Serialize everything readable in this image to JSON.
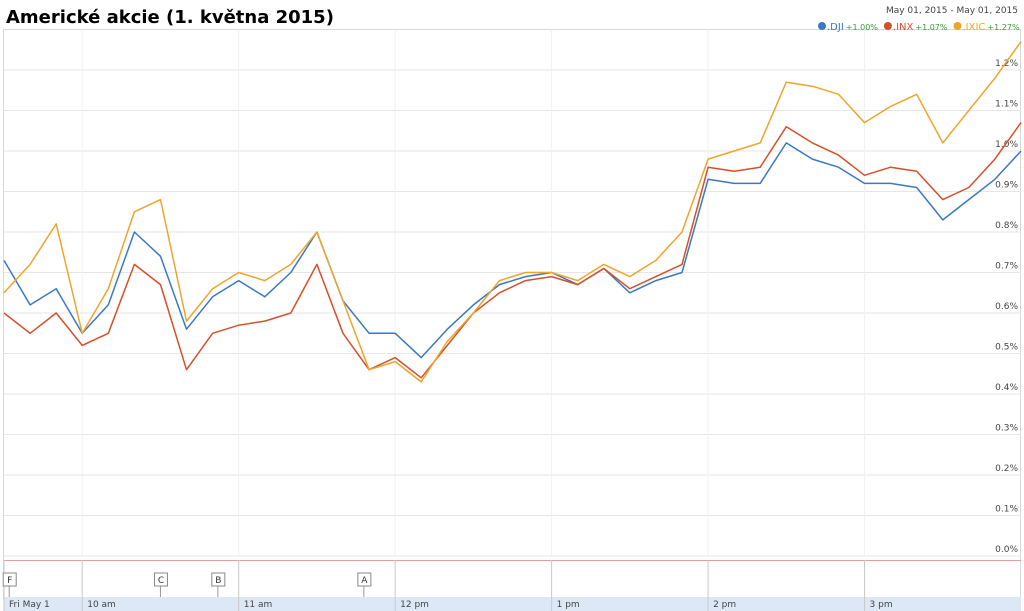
{
  "chart_data": {
    "type": "line",
    "title": "Americké akcie (1. května 2015)",
    "date_range": "May 01, 2015 - May 01, 2015",
    "x": [
      570,
      580,
      590,
      600,
      610,
      620,
      630,
      640,
      650,
      660,
      670,
      680,
      690,
      700,
      710,
      720,
      730,
      740,
      750,
      760,
      770,
      780,
      790,
      800,
      810,
      820,
      830,
      840,
      850,
      860,
      870,
      880,
      890,
      900,
      910,
      920,
      930,
      940,
      950,
      960
    ],
    "series": [
      {
        "name": ".DJI",
        "change": "+1.00%",
        "color": "#3a78c0",
        "values": [
          0.73,
          0.62,
          0.66,
          0.55,
          0.62,
          0.8,
          0.74,
          0.56,
          0.64,
          0.68,
          0.64,
          0.7,
          0.8,
          0.63,
          0.55,
          0.55,
          0.49,
          0.56,
          0.62,
          0.67,
          0.69,
          0.7,
          0.67,
          0.71,
          0.65,
          0.68,
          0.7,
          0.93,
          0.92,
          0.92,
          1.02,
          0.98,
          0.96,
          0.92,
          0.92,
          0.91,
          0.83,
          0.88,
          0.93,
          1.0
        ]
      },
      {
        "name": ".INX",
        "change": "+1.07%",
        "color": "#d4502a",
        "values": [
          0.6,
          0.55,
          0.6,
          0.52,
          0.55,
          0.72,
          0.67,
          0.46,
          0.55,
          0.57,
          0.58,
          0.6,
          0.72,
          0.55,
          0.46,
          0.49,
          0.44,
          0.52,
          0.6,
          0.65,
          0.68,
          0.69,
          0.67,
          0.71,
          0.66,
          0.69,
          0.72,
          0.96,
          0.95,
          0.96,
          1.06,
          1.02,
          0.99,
          0.94,
          0.96,
          0.95,
          0.88,
          0.91,
          0.98,
          1.07
        ]
      },
      {
        "name": ".IXIC",
        "change": "+1.27%",
        "color": "#eea52a",
        "values": [
          0.65,
          0.72,
          0.82,
          0.55,
          0.66,
          0.85,
          0.88,
          0.58,
          0.66,
          0.7,
          0.68,
          0.72,
          0.8,
          0.63,
          0.46,
          0.48,
          0.43,
          0.53,
          0.6,
          0.68,
          0.7,
          0.7,
          0.68,
          0.72,
          0.69,
          0.73,
          0.8,
          0.98,
          1.0,
          1.02,
          1.17,
          1.16,
          1.14,
          1.07,
          1.11,
          1.14,
          1.02,
          1.1,
          1.18,
          1.27
        ]
      }
    ],
    "xlim": [
      570,
      960
    ],
    "xticks": [
      {
        "value": 570,
        "label": "Fri May 1"
      },
      {
        "value": 600,
        "label": "10 am"
      },
      {
        "value": 660,
        "label": "11 am"
      },
      {
        "value": 720,
        "label": "12 pm"
      },
      {
        "value": 780,
        "label": "1 pm"
      },
      {
        "value": 840,
        "label": "2 pm"
      },
      {
        "value": 900,
        "label": "3 pm"
      }
    ],
    "ylim": [
      0,
      1.3
    ],
    "yticks": [
      {
        "value": 0,
        "label": "0.0%"
      },
      {
        "value": 0.1,
        "label": "0.1%"
      },
      {
        "value": 0.2,
        "label": "0.2%"
      },
      {
        "value": 0.3,
        "label": "0.3%"
      },
      {
        "value": 0.4,
        "label": "0.4%"
      },
      {
        "value": 0.5,
        "label": "0.5%"
      },
      {
        "value": 0.6,
        "label": "0.6%"
      },
      {
        "value": 0.7,
        "label": "0.7%"
      },
      {
        "value": 0.8,
        "label": "0.8%"
      },
      {
        "value": 0.9,
        "label": "0.9%"
      },
      {
        "value": 1.0,
        "label": "1.0%"
      },
      {
        "value": 1.1,
        "label": "1.1%"
      },
      {
        "value": 1.2,
        "label": "1.2%"
      }
    ],
    "grid": true,
    "annotations": [
      {
        "x": 572,
        "label": "F"
      },
      {
        "x": 630,
        "label": "C"
      },
      {
        "x": 652,
        "label": "B"
      },
      {
        "x": 708,
        "label": "A"
      }
    ]
  }
}
